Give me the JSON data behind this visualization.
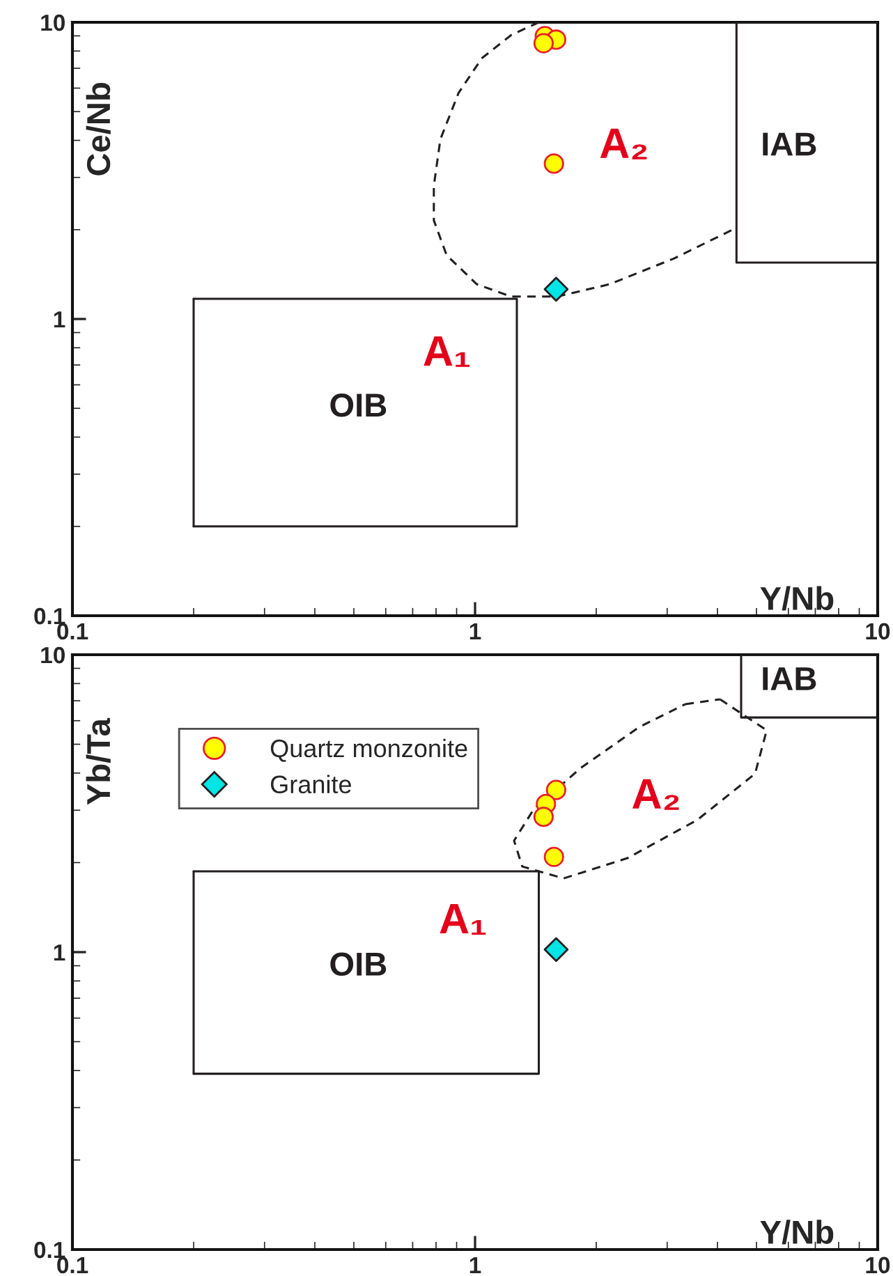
{
  "chart_data": [
    {
      "type": "scatter",
      "xlabel": "Y/Nb",
      "ylabel": "Ce/Nb",
      "log": "xy",
      "xlim": [
        0.1,
        10
      ],
      "ylim": [
        0.1,
        10
      ],
      "xticks": [
        0.1,
        1,
        10
      ],
      "yticks": [
        0.1,
        1,
        10
      ],
      "grid": false,
      "legend": false,
      "series": [
        {
          "marker": "circle",
          "color": "#ffff00",
          "x": [
            1.49,
            1.59,
            1.48,
            1.57
          ],
          "values": [
            8.98,
            8.74,
            8.5,
            3.34
          ]
        },
        {
          "marker": "diamond",
          "color": "#00e5e5",
          "x": [
            1.59
          ],
          "values": [
            1.26
          ]
        },
        {
          "type": "line",
          "marker": "none",
          "line_style": "solid",
          "color": "#231f20",
          "x": [
            0.2,
            1.27,
            1.27,
            0.2
          ],
          "values": [
            0.2,
            0.2,
            1.17,
            1.17
          ]
        },
        {
          "type": "line",
          "marker": "none",
          "line_style": "solid",
          "color": "#231f20",
          "x": [
            0.2,
            0.2
          ],
          "values": [
            0.2,
            1.17
          ]
        },
        {
          "type": "line",
          "marker": "none",
          "line_style": "solid",
          "color": "#231f20",
          "x": [
            10,
            4.46,
            4.46,
            10
          ],
          "values": [
            1.55,
            1.55,
            10,
            10
          ]
        },
        {
          "type": "line",
          "marker": "none",
          "line_style": "dashed",
          "color": "#231f20",
          "x": [
            1.44,
            1.23,
            1.04,
            0.91,
            0.82,
            0.79,
            0.79,
            0.85,
            1.01,
            1.23,
            1.6,
            2.16,
            3.12,
            4.46
          ],
          "values": [
            10,
            9.06,
            7.57,
            5.78,
            4.03,
            2.81,
            2.15,
            1.64,
            1.31,
            1.19,
            1.19,
            1.31,
            1.6,
            2.03
          ]
        }
      ],
      "annotations": [
        "OIB",
        "IAB",
        "A₁",
        "A₂"
      ]
    },
    {
      "type": "scatter",
      "xlabel": "Y/Nb",
      "ylabel": "Yb/Ta",
      "log": "xy",
      "xlim": [
        0.1,
        10
      ],
      "ylim": [
        0.1,
        10
      ],
      "xticks": [
        0.1,
        1,
        10
      ],
      "yticks": [
        0.1,
        1,
        10
      ],
      "grid": false,
      "legend": "top left",
      "series": [
        {
          "name": "Quartz monzonite",
          "marker": "circle",
          "color": "#ffff00",
          "x": [
            1.59,
            1.5,
            1.48,
            1.57
          ],
          "values": [
            3.51,
            3.15,
            2.85,
            2.09
          ]
        },
        {
          "name": "Granite",
          "marker": "diamond",
          "color": "#00e5e5",
          "x": [
            1.59
          ],
          "values": [
            1.02
          ]
        },
        {
          "type": "line",
          "marker": "none",
          "line_style": "solid",
          "color": "#231f20",
          "x": [
            0.2,
            1.44,
            1.44,
            0.2
          ],
          "values": [
            0.39,
            0.39,
            1.87,
            1.87
          ]
        },
        {
          "type": "line",
          "marker": "none",
          "line_style": "solid",
          "color": "#231f20",
          "x": [
            0.2,
            0.2
          ],
          "values": [
            0.39,
            1.87
          ]
        },
        {
          "type": "line",
          "marker": "none",
          "line_style": "solid",
          "color": "#231f20",
          "x": [
            10,
            4.58,
            4.58,
            10
          ],
          "values": [
            6.15,
            6.15,
            10,
            10
          ]
        },
        {
          "type": "line",
          "marker": "none",
          "line_style": "dashed",
          "color": "#231f20",
          "x": [
            4.06,
            5.3,
            4.96,
            3.56,
            2.39,
            1.66,
            1.31,
            1.25,
            1.4,
            1.83,
            2.55,
            3.33
          ],
          "values": [
            7.08,
            5.57,
            3.98,
            2.78,
            2.07,
            1.77,
            1.94,
            2.37,
            3.03,
            4.16,
            5.7,
            6.82
          ]
        }
      ],
      "annotations": [
        "OIB",
        "IAB",
        "A₁",
        "A₂"
      ]
    }
  ]
}
